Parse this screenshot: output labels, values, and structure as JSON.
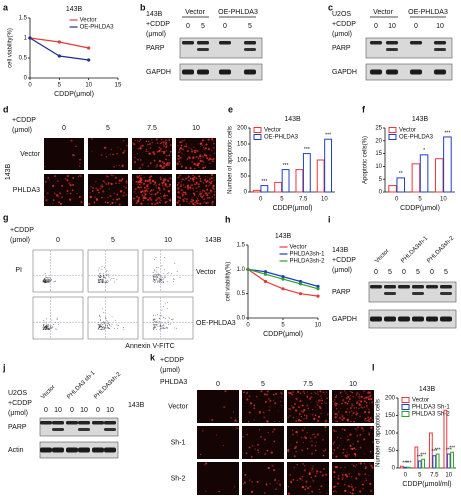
{
  "panel_letters": [
    "a",
    "b",
    "c",
    "d",
    "e",
    "f",
    "g",
    "h",
    "i",
    "j",
    "k",
    "l"
  ],
  "chart_data": [
    {
      "type": "line",
      "title": "143B",
      "ylabel": "cell viability(%)",
      "xlabel": "CDDP(μmol)",
      "x": [
        0,
        5,
        10
      ],
      "xlim": [
        0,
        15
      ],
      "xticks": [
        0,
        5,
        10,
        15
      ],
      "ylim": [
        0,
        1.5
      ],
      "yticks": [
        0,
        0.5,
        1,
        1.5
      ],
      "legend": "upper right",
      "series": [
        {
          "name": "Vector",
          "color": "#e8383d",
          "values": [
            1,
            0.9,
            0.75
          ]
        },
        {
          "name": "OE-PHLDA3",
          "color": "#1f2f8f",
          "values": [
            1,
            0.55,
            0.45
          ]
        }
      ]
    },
    {
      "type": "bar",
      "title": "143B",
      "ylabel": "Number of apoptotic cells",
      "xlabel": "CDDP(μmol)",
      "categories": [
        "0",
        "5",
        "7.5",
        "10"
      ],
      "ylim": [
        0,
        200
      ],
      "yticks": [
        0,
        50,
        100,
        150,
        200
      ],
      "legend": "upper left",
      "series": [
        {
          "name": "Vector",
          "color": "#e8383d",
          "values": [
            5,
            30,
            70,
            100
          ]
        },
        {
          "name": "OE-PHLDA3",
          "color": "#1f3fbf",
          "values": [
            20,
            70,
            120,
            165
          ],
          "significance": [
            "***",
            "***",
            "***",
            "***"
          ]
        }
      ]
    },
    {
      "type": "bar",
      "title": "143B",
      "ylabel": "Apoptotic cells(%)",
      "xlabel": "CDDP(μmol)",
      "categories": [
        "0",
        "5",
        "10"
      ],
      "ylim": [
        0,
        25
      ],
      "yticks": [
        0,
        5,
        10,
        15,
        20,
        25
      ],
      "legend": "upper left",
      "series": [
        {
          "name": "Vector",
          "color": "#e8383d",
          "values": [
            2.5,
            11,
            13
          ]
        },
        {
          "name": "OE-PHLDA3",
          "color": "#1f3fbf",
          "values": [
            5.5,
            14.5,
            21.5
          ],
          "significance": [
            "**",
            "*",
            "***"
          ]
        }
      ]
    },
    {
      "type": "line",
      "title": "143B",
      "ylabel": "cell viability(%)",
      "xlabel": "CDDP(μmol)",
      "x": [
        0,
        2.5,
        5,
        7.5,
        10
      ],
      "xlim": [
        0,
        10
      ],
      "xticks": [
        0,
        5,
        10
      ],
      "ylim": [
        0,
        1.5
      ],
      "yticks": [
        {
          "value": 0,
          "label": "0.0"
        },
        0.5,
        {
          "value": 1,
          "label": "1.0"
        },
        1.5
      ],
      "legend": "upper right",
      "series": [
        {
          "name": "Vector",
          "color": "#e8383d",
          "values": [
            1,
            0.75,
            0.6,
            0.5,
            0.45
          ]
        },
        {
          "name": "PHLDA3sh-1",
          "color": "#1f3fbf",
          "values": [
            1,
            0.95,
            0.85,
            0.75,
            0.65
          ]
        },
        {
          "name": "PHLDA3sh-2",
          "color": "#2ca02c",
          "values": [
            1,
            0.9,
            0.8,
            0.7,
            0.6
          ]
        }
      ]
    },
    {
      "type": "bar",
      "title": "143B",
      "ylabel": "Number of apoptotic cells",
      "xlabel": "CDDP(μmol/ml)",
      "categories": [
        "0",
        "5",
        "7.5",
        "10"
      ],
      "ylim": [
        0,
        200
      ],
      "yticks": [
        0,
        50,
        100,
        150,
        200
      ],
      "legend": "upper left",
      "series": [
        {
          "name": "Vector",
          "color": "#e8383d",
          "values": [
            5,
            60,
            100,
            165
          ]
        },
        {
          "name": "PHLDA3 Sh-1",
          "color": "#1f3fbf",
          "values": [
            2,
            20,
            35,
            40
          ],
          "significance": [
            "***",
            "***",
            "***",
            "***"
          ]
        },
        {
          "name": "PHLDA3 Sh-2",
          "color": "#2ca02c",
          "values": [
            2,
            25,
            40,
            45
          ],
          "significance": [
            "***",
            "***",
            "***",
            "***"
          ]
        }
      ]
    }
  ],
  "blots": {
    "b": {
      "condition": [
        "143B",
        "+CDDP",
        "(μmol)"
      ],
      "groups": [
        "Vector",
        "OE-PHLDA3"
      ],
      "doses": [
        "0",
        "5",
        "0",
        "5"
      ],
      "proteins": [
        "PARP",
        "GAPDH"
      ]
    },
    "c": {
      "condition": [
        "U2OS",
        "+CDDP",
        "(μmol)"
      ],
      "groups": [
        "Vector",
        "OE-PHLDA3"
      ],
      "doses": [
        "0",
        "10",
        "0",
        "10"
      ],
      "proteins": [
        "PARP",
        "GAPDH"
      ]
    },
    "i": {
      "condition": [
        "143B",
        "+CDDP",
        "(μmol)"
      ],
      "groups": [
        "Vector",
        "PHLDA3sh-1",
        "PHLDA3sh-2"
      ],
      "doses": [
        "0",
        "5",
        "0",
        "5",
        "0",
        "5"
      ],
      "proteins": [
        "PARP",
        "GAPDH"
      ]
    },
    "j": {
      "condition": [
        "U2OS",
        "+CDDP",
        "(μmol)"
      ],
      "groups": [
        "Vector",
        "PHLDA3 sh-1",
        "PHLDA3sh-2"
      ],
      "doses": [
        "0",
        "10",
        "0",
        "10",
        "0",
        "10"
      ],
      "proteins": [
        "PARP",
        "Actin"
      ],
      "side_label": "143B"
    }
  },
  "images": {
    "d": {
      "condition": [
        "+CDDP",
        "(μmol)"
      ],
      "doses": [
        "0",
        "5",
        "7.5",
        "10"
      ],
      "rows": [
        "Vector",
        "PHLDA3"
      ],
      "cell_line": "143B"
    },
    "g": {
      "condition": [
        "+CDDP",
        "(μmol)"
      ],
      "doses": [
        "0",
        "5",
        "10"
      ],
      "rows": [
        "Vector",
        "OE-PHLDA3"
      ],
      "cell_line": "143B",
      "y_axis": "PI",
      "x_axis": "Annexin V-FITC"
    },
    "k": {
      "condition": [
        "+CDDP",
        "(μmol)"
      ],
      "group": "PHLDA3",
      "doses": [
        "0",
        "5",
        "7.5",
        "10"
      ],
      "rows": [
        "Vector",
        "Sh-1",
        "Sh-2"
      ]
    }
  }
}
